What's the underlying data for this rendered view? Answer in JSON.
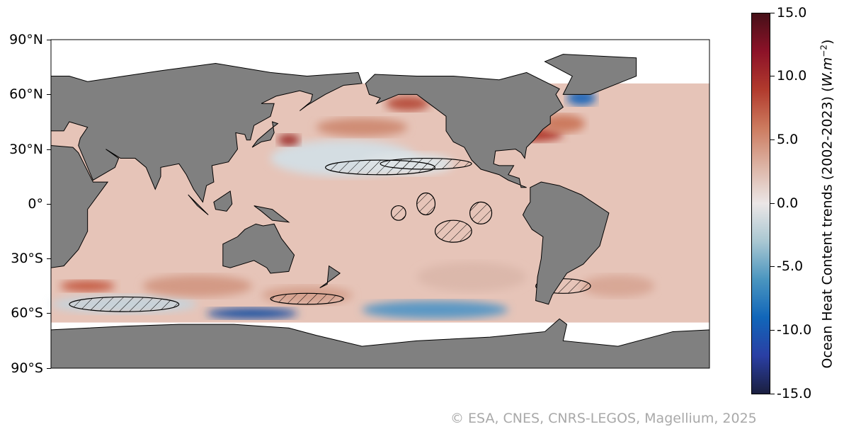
{
  "map": {
    "projection": "equirectangular",
    "central_longitude": 200,
    "lat_labels": [
      "90°N",
      "60°N",
      "30°N",
      "0°",
      "30°S",
      "60°S",
      "90°S"
    ],
    "land_color": "#808080",
    "no_data_color": "#ffffff",
    "hatching": "non-significant trend regions"
  },
  "colorbar": {
    "label": "Ocean Heat Content trends (2002-2023) (W.m⁻²)",
    "label_main": "Ocean Heat Content trends (2002-2023) (",
    "label_unit": "W.m",
    "label_exp": "−2",
    "label_close": ")",
    "min": -15.0,
    "max": 15.0,
    "ticks": [
      "15.0",
      "10.0",
      "5.0",
      "0.0",
      "-5.0",
      "-10.0",
      "-15.0"
    ],
    "colormap": [
      "#1b1f3f",
      "#2a3fa4",
      "#1166b9",
      "#4a95bf",
      "#a9c7d2",
      "#ebe6e6",
      "#dcb2a3",
      "#cc7a5e",
      "#b13a2d",
      "#8c1228",
      "#461018"
    ]
  },
  "credit": "© ESA, CNES, CNRS-LEGOS, Magellium, 2025"
}
